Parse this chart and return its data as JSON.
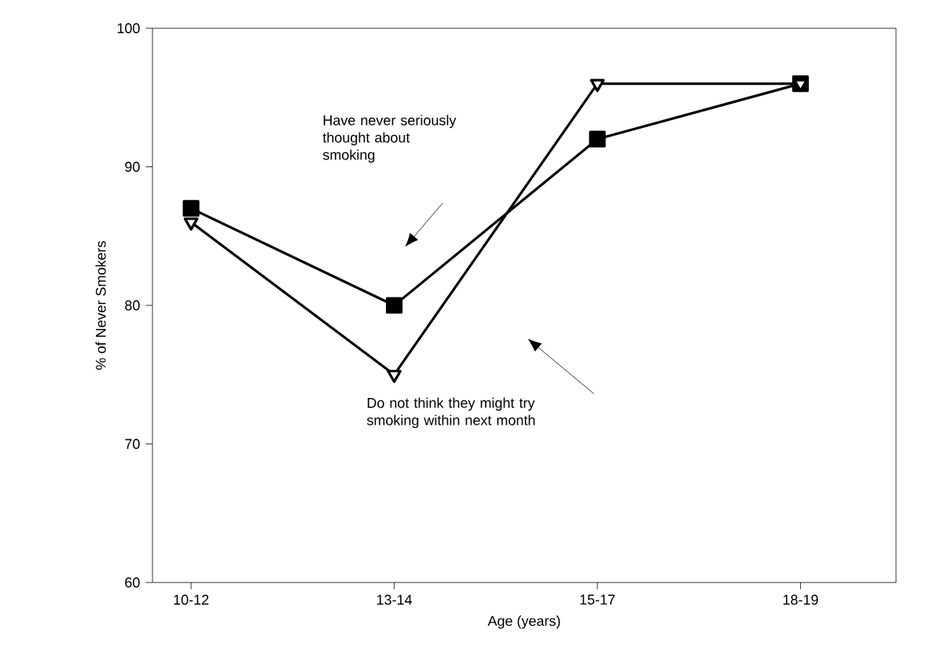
{
  "chart_data": {
    "type": "line",
    "xlabel": "Age (years)",
    "ylabel": "% of Never Smokers",
    "categories": [
      "10-12",
      "13-14",
      "15-17",
      "18-19"
    ],
    "series": [
      {
        "color": "#000000",
        "marker": "square",
        "values": [
          87,
          80,
          92,
          96
        ]
      },
      {
        "color": "#000000",
        "marker": "triangle",
        "values": [
          86,
          75,
          96,
          96
        ]
      }
    ],
    "annotations": [
      "Have never seriously thought about smoking",
      "Do not think they might try smoking within next month"
    ],
    "ylim": [
      60,
      100
    ],
    "yticks": [
      60,
      70,
      80,
      90,
      100
    ],
    "line_style": "solid"
  }
}
